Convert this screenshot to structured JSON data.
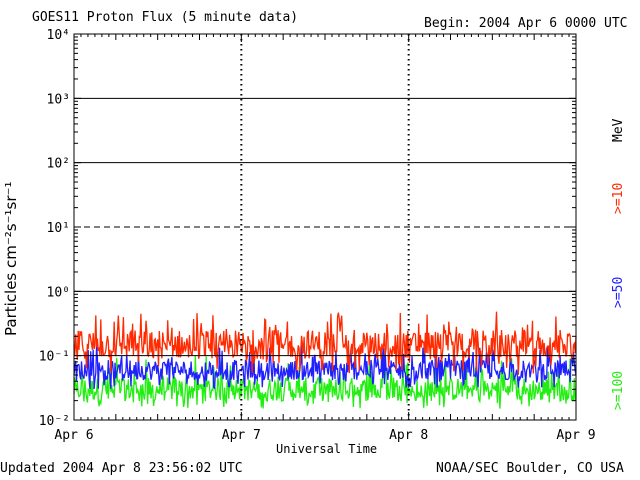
{
  "header": {
    "title": "GOES11 Proton Flux (5 minute data)",
    "begin": "Begin: 2004 Apr 6 0000 UTC"
  },
  "footer": {
    "updated": "Updated 2004 Apr  8 23:56:02 UTC",
    "source": "NOAA/SEC Boulder, CO USA"
  },
  "chart_data": {
    "type": "line",
    "ylabel": "Particles cm⁻²s⁻¹sr⁻¹",
    "xlabel": "Universal Time",
    "x_ticks": [
      "Apr 6",
      "Apr 7",
      "Apr 8",
      "Apr 9"
    ],
    "y_ticks": [
      "10⁻²",
      "10⁻¹",
      "10⁰",
      "10¹",
      "10²",
      "10³",
      "10⁴"
    ],
    "yscale": "log",
    "ylim": [
      0.01,
      10000
    ],
    "xlim_days": [
      0,
      3
    ],
    "grid": {
      "solid_y": [
        1000,
        100,
        1,
        0.1
      ],
      "dashed_y": [
        10
      ]
    },
    "units_label": "MeV",
    "series": [
      {
        "name": ">=10",
        "color": "#ff2a00",
        "typical": 0.15,
        "min": 0.05,
        "max": 0.5
      },
      {
        "name": ">=50",
        "color": "#2020ff",
        "typical": 0.06,
        "min": 0.03,
        "max": 0.15
      },
      {
        "name": ">=100",
        "color": "#22ee11",
        "typical": 0.03,
        "min": 0.015,
        "max": 0.1
      }
    ]
  }
}
